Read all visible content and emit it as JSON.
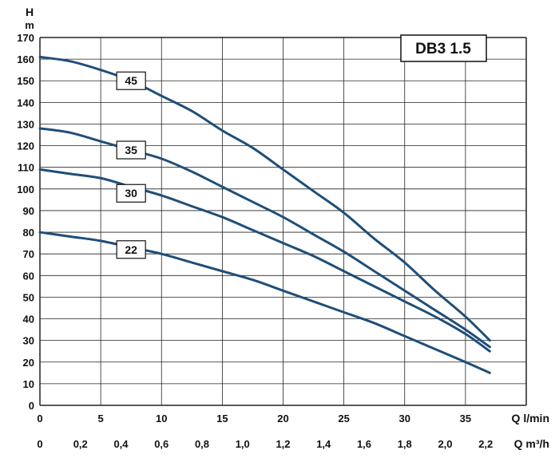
{
  "chart_data": {
    "type": "line",
    "title": "DB3 1.5",
    "ylabel_line1": "H",
    "ylabel_line2": "m",
    "xlabel_primary": "Q l/min",
    "xlabel_secondary": "Q m³/h",
    "xlim": [
      0,
      40
    ],
    "ylim": [
      0,
      170
    ],
    "grid": true,
    "x_ticks": [
      "0",
      "5",
      "10",
      "15",
      "20",
      "25",
      "30",
      "35"
    ],
    "y_ticks": [
      "0",
      "10",
      "20",
      "30",
      "40",
      "50",
      "60",
      "70",
      "80",
      "90",
      "100",
      "110",
      "120",
      "130",
      "140",
      "150",
      "160",
      "170"
    ],
    "x2_ticks": [
      {
        "q": 0,
        "label": "0"
      },
      {
        "q": 0.2,
        "label": "0,2"
      },
      {
        "q": 0.4,
        "label": "0,4"
      },
      {
        "q": 0.6,
        "label": "0,6"
      },
      {
        "q": 0.8,
        "label": "0,8"
      },
      {
        "q": 1.0,
        "label": "1,0"
      },
      {
        "q": 1.2,
        "label": "1,2"
      },
      {
        "q": 1.4,
        "label": "1,4"
      },
      {
        "q": 1.6,
        "label": "1,6"
      },
      {
        "q": 1.8,
        "label": "1,8"
      },
      {
        "q": 2.0,
        "label": "2,0"
      },
      {
        "q": 2.2,
        "label": "2,2"
      }
    ],
    "line_color": "#1f4e79",
    "series": [
      {
        "name": "45",
        "label_at": [
          7.5,
          150
        ],
        "x": [
          0,
          2.5,
          5,
          7.5,
          10,
          12.5,
          15,
          17.5,
          20,
          22.5,
          25,
          27.5,
          30,
          32.5,
          35,
          37
        ],
        "y": [
          161,
          159,
          155,
          150,
          143,
          136,
          127,
          119,
          109,
          99,
          89,
          77,
          66,
          53,
          41,
          30
        ]
      },
      {
        "name": "35",
        "label_at": [
          7.5,
          118
        ],
        "x": [
          0,
          2.5,
          5,
          7.5,
          10,
          12.5,
          15,
          17.5,
          20,
          22.5,
          25,
          27.5,
          30,
          32.5,
          35,
          37
        ],
        "y": [
          128,
          126,
          122,
          118,
          114,
          108,
          101,
          94,
          87,
          79,
          71,
          62,
          53,
          44,
          35,
          27
        ]
      },
      {
        "name": "30",
        "label_at": [
          7.5,
          98
        ],
        "x": [
          0,
          2.5,
          5,
          7.5,
          10,
          12.5,
          15,
          17.5,
          20,
          22.5,
          25,
          27.5,
          30,
          32.5,
          35,
          37
        ],
        "y": [
          109,
          107,
          105,
          101,
          97,
          92,
          87,
          81,
          75,
          69,
          62,
          55,
          48,
          41,
          33,
          25
        ]
      },
      {
        "name": "22",
        "label_at": [
          7.5,
          72
        ],
        "x": [
          0,
          2.5,
          5,
          7.5,
          10,
          12.5,
          15,
          17.5,
          20,
          22.5,
          25,
          27.5,
          30,
          32.5,
          35,
          37
        ],
        "y": [
          80,
          78,
          76,
          73,
          70,
          66,
          62,
          58,
          53,
          48,
          43,
          38,
          32,
          26,
          20,
          15
        ]
      }
    ]
  }
}
